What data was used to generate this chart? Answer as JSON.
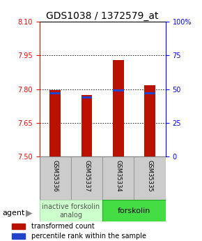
{
  "title": "GDS1038 / 1372579_at",
  "samples": [
    "GSM35336",
    "GSM35337",
    "GSM35334",
    "GSM35335"
  ],
  "transformed_counts": [
    7.797,
    7.775,
    7.928,
    7.818
  ],
  "percentile_ranks_pct": [
    47,
    44,
    49,
    47
  ],
  "ylim_left": [
    7.5,
    8.1
  ],
  "ylim_right": [
    0,
    100
  ],
  "yticks_left": [
    7.5,
    7.65,
    7.8,
    7.95,
    8.1
  ],
  "yticks_right": [
    0,
    25,
    50,
    75,
    100
  ],
  "ytick_labels_right": [
    "0",
    "25",
    "50",
    "75",
    "100%"
  ],
  "bar_bottom": 7.5,
  "bar_color": "#bb1100",
  "percentile_color": "#2244cc",
  "bar_width": 0.35,
  "percentile_bar_width": 0.35,
  "group1_label": "inactive forskolin\nanalog",
  "group2_label": "forskolin",
  "group1_color": "#ccffcc",
  "group2_color": "#44dd44",
  "group1_border": "#aaddaa",
  "group2_border": "#22aa22",
  "sample_box_color": "#cccccc",
  "sample_box_border": "#999999",
  "agent_label": "agent",
  "legend_red_label": "transformed count",
  "legend_blue_label": "percentile rank within the sample",
  "title_fontsize": 10,
  "tick_fontsize": 7,
  "sample_fontsize": 6,
  "legend_fontsize": 7,
  "agent_fontsize": 8,
  "group_fontsize": 7
}
